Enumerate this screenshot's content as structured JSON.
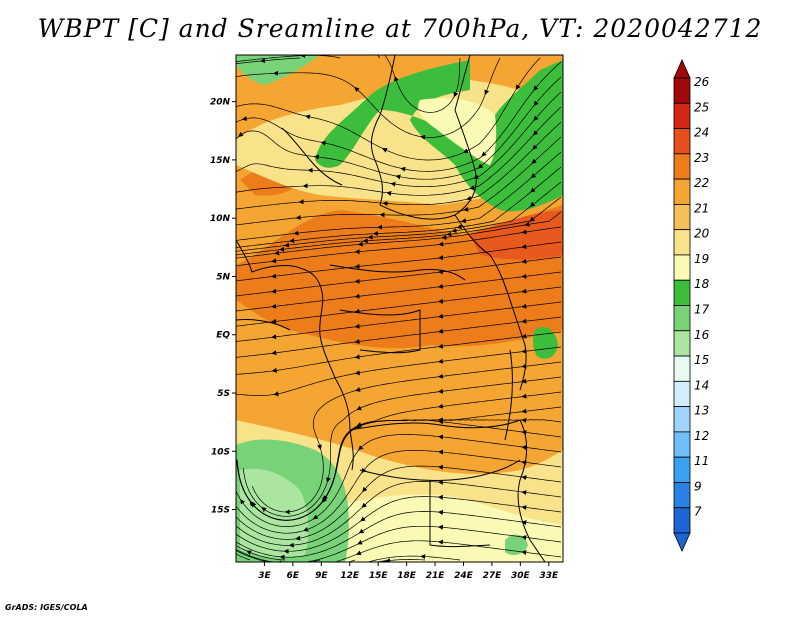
{
  "title": "WBPT [C] and Sreamline at 700hPa, VT: 2020042712",
  "credit": "GrADS: IGES/COLA",
  "map": {
    "lon_labels": [
      "3E",
      "6E",
      "9E",
      "12E",
      "15E",
      "18E",
      "21E",
      "24E",
      "27E",
      "30E",
      "33E"
    ],
    "lat_labels": [
      "20N",
      "15N",
      "10N",
      "5N",
      "EQ",
      "5S",
      "10S",
      "15S"
    ],
    "lon_range": [
      0,
      34.5
    ],
    "lat_range": [
      -19.5,
      24
    ],
    "variable": "WBPT",
    "unit": "C",
    "level": "700hPa",
    "valid_time": "2020042712"
  },
  "colorbar": {
    "levels": [
      "7",
      "9",
      "11",
      "12",
      "13",
      "14",
      "15",
      "16",
      "17",
      "18",
      "19",
      "20",
      "21",
      "22",
      "23",
      "24",
      "25",
      "26"
    ],
    "colors": [
      "#1e64d2",
      "#2882e6",
      "#3ca0f0",
      "#6ebef8",
      "#a0d4fa",
      "#d2eefa",
      "#e6faf0",
      "#aae6a0",
      "#78d278",
      "#3cbe3c",
      "#fafab4",
      "#f8e28a",
      "#f5c05a",
      "#f5a532",
      "#ec7d1a",
      "#e6501e",
      "#d22814",
      "#a00a0a"
    ]
  }
}
